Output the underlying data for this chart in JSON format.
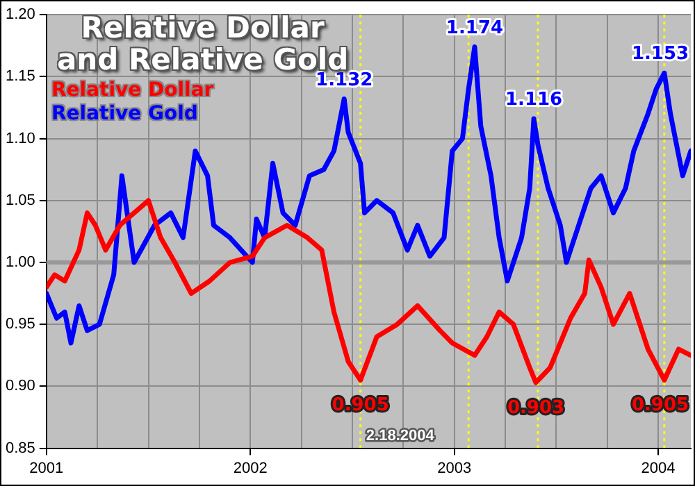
{
  "chart_data": {
    "type": "line",
    "title": "Relative Dollar\nand Relative Gold",
    "xlim": [
      2001,
      2004.16
    ],
    "xticks": [
      2001,
      {
        "value": 2001.25,
        "label": null
      },
      {
        "value": 2001.5,
        "label": null
      },
      {
        "value": 2001.75,
        "label": null
      },
      2002,
      {
        "value": 2002.25,
        "label": null
      },
      {
        "value": 2002.5,
        "label": null
      },
      {
        "value": 2002.75,
        "label": null
      },
      2003,
      {
        "value": 2003.25,
        "label": null
      },
      {
        "value": 2003.5,
        "label": null
      },
      {
        "value": 2003.75,
        "label": null
      },
      2004
    ],
    "ylim": [
      0.85,
      1.2
    ],
    "yticks": [
      0.85,
      {
        "value": 0.9,
        "label": "0.90"
      },
      0.95,
      {
        "value": 1,
        "label": "1.00"
      },
      1.05,
      {
        "value": 1.1,
        "label": "1.10"
      },
      1.15,
      {
        "value": 1.2,
        "label": "1.20"
      }
    ],
    "grid": true,
    "legend": "top left",
    "marker": "none",
    "line_style": "solid",
    "series": [
      {
        "name": "Relative Dollar",
        "color": "#ff0000",
        "x": [
          2001.0,
          2001.04,
          2001.09,
          2001.16,
          2001.2,
          2001.24,
          2001.29,
          2001.36,
          2001.43,
          2001.5,
          2001.56,
          2001.63,
          2001.71,
          2001.8,
          2001.9,
          2002.01,
          2002.07,
          2002.18,
          2002.28,
          2002.35,
          2002.41,
          2002.48,
          2002.54,
          2002.62,
          2002.72,
          2002.82,
          2002.93,
          2002.99,
          2003.1,
          2003.16,
          2003.22,
          2003.29,
          2003.37,
          2003.4,
          2003.47,
          2003.57,
          2003.64,
          2003.66,
          2003.72,
          2003.78,
          2003.86,
          2003.95,
          2004.03,
          2004.1,
          2004.16
        ],
        "values": [
          0.98,
          0.99,
          0.985,
          1.01,
          1.04,
          1.03,
          1.01,
          1.03,
          1.04,
          1.05,
          1.02,
          1.0,
          0.975,
          0.985,
          1.0,
          1.005,
          1.02,
          1.03,
          1.02,
          1.01,
          0.96,
          0.92,
          0.905,
          0.94,
          0.95,
          0.965,
          0.945,
          0.935,
          0.925,
          0.94,
          0.96,
          0.95,
          0.915,
          0.903,
          0.915,
          0.955,
          0.975,
          1.002,
          0.98,
          0.95,
          0.975,
          0.93,
          0.905,
          0.93,
          0.925
        ]
      },
      {
        "name": "Relative Gold",
        "color": "#0000ff",
        "x": [
          2001.0,
          2001.05,
          2001.09,
          2001.12,
          2001.16,
          2001.2,
          2001.26,
          2001.33,
          2001.37,
          2001.43,
          2001.53,
          2001.61,
          2001.67,
          2001.73,
          2001.79,
          2001.82,
          2001.9,
          2002.01,
          2002.03,
          2002.07,
          2002.11,
          2002.16,
          2002.22,
          2002.29,
          2002.36,
          2002.41,
          2002.46,
          2002.48,
          2002.54,
          2002.56,
          2002.62,
          2002.7,
          2002.77,
          2002.82,
          2002.88,
          2002.95,
          2002.99,
          2003.04,
          2003.07,
          2003.1,
          2003.13,
          2003.18,
          2003.22,
          2003.26,
          2003.33,
          2003.37,
          2003.39,
          2003.41,
          2003.46,
          2003.52,
          2003.55,
          2003.61,
          2003.67,
          2003.72,
          2003.78,
          2003.84,
          2003.88,
          2003.95,
          2003.99,
          2004.03,
          2004.06,
          2004.12,
          2004.16
        ],
        "values": [
          0.975,
          0.955,
          0.96,
          0.935,
          0.965,
          0.945,
          0.95,
          0.99,
          1.07,
          1.0,
          1.03,
          1.04,
          1.02,
          1.09,
          1.07,
          1.03,
          1.02,
          1.0,
          1.035,
          1.02,
          1.08,
          1.04,
          1.03,
          1.07,
          1.075,
          1.09,
          1.132,
          1.105,
          1.08,
          1.04,
          1.05,
          1.04,
          1.01,
          1.03,
          1.005,
          1.02,
          1.09,
          1.1,
          1.14,
          1.174,
          1.11,
          1.07,
          1.02,
          0.985,
          1.02,
          1.06,
          1.116,
          1.095,
          1.06,
          1.03,
          1.0,
          1.03,
          1.06,
          1.07,
          1.04,
          1.06,
          1.09,
          1.12,
          1.14,
          1.153,
          1.12,
          1.07,
          1.09
        ]
      }
    ],
    "ref_lines": [
      {
        "axis": "y",
        "value": 1,
        "color": "#999999"
      },
      {
        "axis": "x",
        "value": 2002.54,
        "color": "#ffff00",
        "line_style": "dotted"
      },
      {
        "axis": "x",
        "value": 2003.07,
        "color": "#ffff00",
        "line_style": "dotted"
      },
      {
        "axis": "x",
        "value": 2003.41,
        "color": "#ffff00",
        "line_style": "dotted"
      },
      {
        "axis": "x",
        "value": 2004.03,
        "color": "#ffff00",
        "line_style": "dotted"
      }
    ],
    "annotations": [
      {
        "text": "1.132",
        "x": 2002.46,
        "y": 1.132
      },
      {
        "text": "1.174",
        "x": 2003.1,
        "y": 1.174
      },
      {
        "text": "1.116",
        "x": 2003.39,
        "y": 1.116
      },
      {
        "text": "1.153",
        "x": 2004.03,
        "y": 1.153
      },
      {
        "text": "0.905",
        "x": 2002.54,
        "y": 0.905
      },
      {
        "text": "0.903",
        "x": 2003.4,
        "y": 0.903
      },
      {
        "text": "0.905",
        "x": 2004.03,
        "y": 0.905
      },
      "2.18.2004"
    ]
  }
}
